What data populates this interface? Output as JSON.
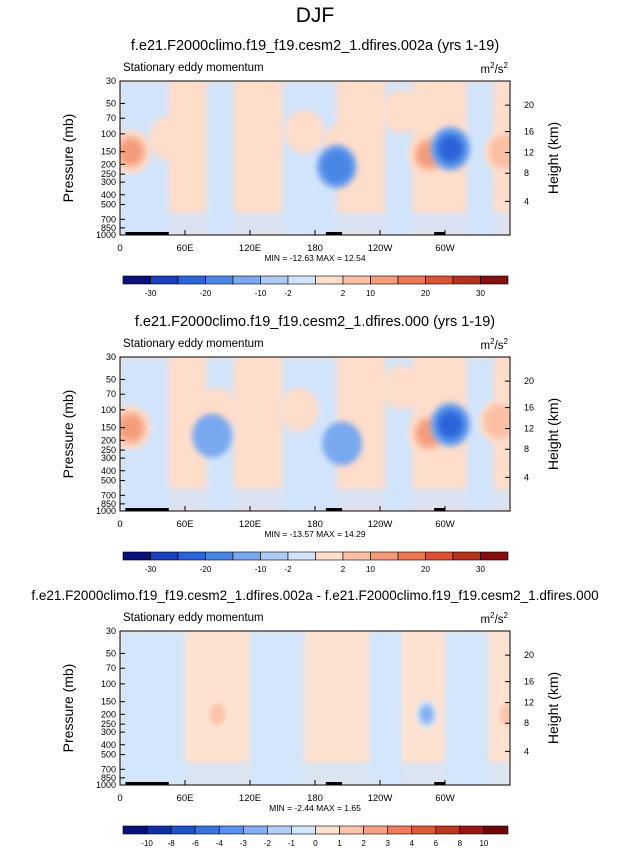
{
  "page_title": "DJF",
  "chart_data": [
    {
      "type": "heatmap",
      "title": "f.e21.F2000climo.f19_f19.cesm2_1.dfires.002a (yrs 1-19)",
      "subtitle": "Stationary eddy momentum",
      "units": "m²/s²",
      "units_base": "m",
      "units_sup1": "2",
      "units_mid": "/s",
      "units_sup2": "2",
      "ylabel": "Pressure (mb)",
      "ylabel_right": "Height (km)",
      "x_ticks": [
        "0",
        "60E",
        "120E",
        "180",
        "120W",
        "60W"
      ],
      "y_ticks": [
        "30",
        "50",
        "70",
        "100",
        "150",
        "200",
        "250",
        "300",
        "400",
        "500",
        "700",
        "850",
        "1000"
      ],
      "y_ticks_right": [
        "20",
        "16",
        "12",
        "8",
        "4"
      ],
      "xlim": [
        0,
        360
      ],
      "ylim": [
        1000,
        30
      ],
      "min_max": "MIN = -12.63   MAX =  12.54",
      "min": -12.63,
      "max": 12.54,
      "colorbar_labels": [
        "-30",
        "-20",
        "-10",
        "-2",
        "2",
        "10",
        "20",
        "30"
      ],
      "blobs": [
        {
          "lon": 10,
          "p": 150,
          "value": 12
        },
        {
          "lon": 45,
          "p": 110,
          "value": 2
        },
        {
          "lon": 130,
          "p": 100,
          "value": 3
        },
        {
          "lon": 170,
          "p": 95,
          "value": 2
        },
        {
          "lon": 205,
          "p": 130,
          "value": 2
        },
        {
          "lon": 200,
          "p": 210,
          "value": -6
        },
        {
          "lon": 130,
          "p": 75,
          "value": -1
        },
        {
          "lon": 60,
          "p": 200,
          "value": -1
        },
        {
          "lon": 285,
          "p": 160,
          "value": 12
        },
        {
          "lon": 305,
          "p": 140,
          "value": -12
        },
        {
          "lon": 355,
          "p": 150,
          "value": 8
        },
        {
          "lon": 260,
          "p": 60,
          "value": 2
        }
      ]
    },
    {
      "type": "heatmap",
      "title": "f.e21.F2000climo.f19_f19.cesm2_1.dfires.000 (yrs 1-19)",
      "subtitle": "Stationary eddy momentum",
      "units": "m²/s²",
      "units_base": "m",
      "units_sup1": "2",
      "units_mid": "/s",
      "units_sup2": "2",
      "ylabel": "Pressure (mb)",
      "ylabel_right": "Height (km)",
      "x_ticks": [
        "0",
        "60E",
        "120E",
        "180",
        "120W",
        "60W"
      ],
      "y_ticks": [
        "30",
        "50",
        "70",
        "100",
        "150",
        "200",
        "250",
        "300",
        "400",
        "500",
        "700",
        "850",
        "1000"
      ],
      "y_ticks_right": [
        "20",
        "16",
        "12",
        "8",
        "4"
      ],
      "xlim": [
        0,
        360
      ],
      "ylim": [
        1000,
        30
      ],
      "min_max": "MIN = -13.57   MAX =  14.29",
      "min": -13.57,
      "max": 14.29,
      "colorbar_labels": [
        "-30",
        "-20",
        "-10",
        "-2",
        "2",
        "10",
        "20",
        "30"
      ],
      "blobs": [
        {
          "lon": 10,
          "p": 150,
          "value": 13
        },
        {
          "lon": 90,
          "p": 100,
          "value": 3
        },
        {
          "lon": 165,
          "p": 100,
          "value": 3
        },
        {
          "lon": 205,
          "p": 215,
          "value": -4
        },
        {
          "lon": 85,
          "p": 180,
          "value": -2
        },
        {
          "lon": 285,
          "p": 170,
          "value": 14
        },
        {
          "lon": 305,
          "p": 140,
          "value": -13
        },
        {
          "lon": 350,
          "p": 130,
          "value": 8
        },
        {
          "lon": 260,
          "p": 60,
          "value": 2
        }
      ]
    },
    {
      "type": "heatmap",
      "title": "f.e21.F2000climo.f19_f19.cesm2_1.dfires.002a - f.e21.F2000climo.f19_f19.cesm2_1.dfires.000",
      "subtitle": "Stationary eddy momentum",
      "units": "m²/s²",
      "units_base": "m",
      "units_sup1": "2",
      "units_mid": "/s",
      "units_sup2": "2",
      "ylabel": "Pressure (mb)",
      "ylabel_right": "Height (km)",
      "x_ticks": [
        "0",
        "60E",
        "120E",
        "180",
        "120W",
        "60W"
      ],
      "y_ticks": [
        "30",
        "50",
        "70",
        "100",
        "150",
        "200",
        "250",
        "300",
        "400",
        "500",
        "700",
        "850",
        "1000"
      ],
      "y_ticks_right": [
        "20",
        "16",
        "12",
        "8",
        "4"
      ],
      "xlim": [
        0,
        360
      ],
      "ylim": [
        1000,
        30
      ],
      "min_max": "MIN = -2.44   MAX =  1.65",
      "min": -2.44,
      "max": 1.65,
      "colorbar_labels": [
        "-10",
        "-8",
        "-6",
        "-4",
        "-3",
        "-2",
        "-1",
        "0",
        "1",
        "2",
        "3",
        "4",
        "6",
        "8",
        "10"
      ],
      "blobs": [
        {
          "lon": 283,
          "p": 200,
          "value": -2.4
        },
        {
          "lon": 90,
          "p": 200,
          "value": 1.2
        },
        {
          "lon": 358,
          "p": 200,
          "value": 1.6
        }
      ]
    }
  ],
  "palette": {
    "dif": [
      "#08117a",
      "#1a3fbf",
      "#2b63d9",
      "#4a86e6",
      "#7aa8ef",
      "#aecbf5",
      "#d2e4fb",
      "#feddcb",
      "#fbbfa4",
      "#f49b7a",
      "#ec7650",
      "#db5232",
      "#b5321c",
      "#850f0f"
    ],
    "diff_colors": [
      "#08117a",
      "#1230a6",
      "#1f4fcc",
      "#3a72e0",
      "#5b90ea",
      "#86aff1",
      "#b2cdf7",
      "#d3e6fb",
      "#fde2d2",
      "#fbc4aa",
      "#f6a283",
      "#ee7e5b",
      "#df5937",
      "#c03521",
      "#9b1616",
      "#6c0808"
    ]
  }
}
